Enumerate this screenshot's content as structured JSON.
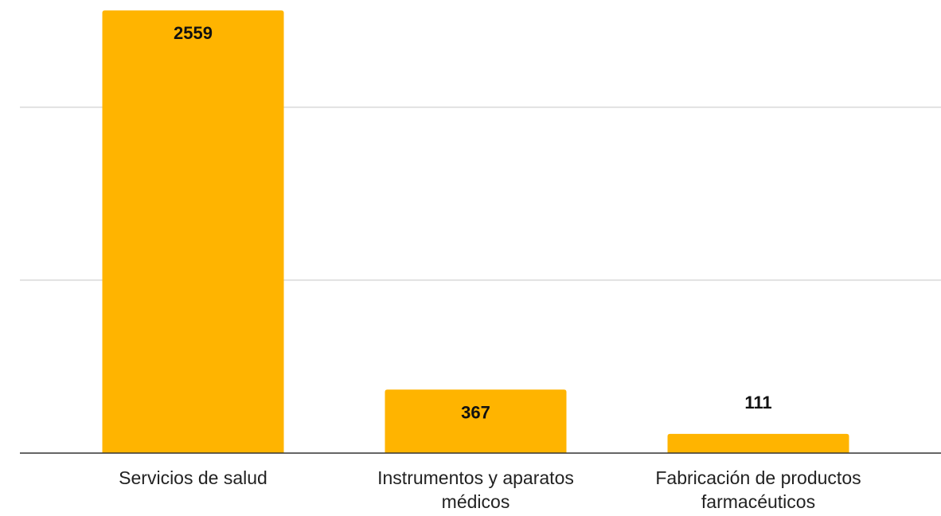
{
  "chart_data": {
    "type": "bar",
    "title": "",
    "xlabel": "",
    "ylabel": "",
    "categories": [
      [
        "Servicios de salud"
      ],
      [
        "Instrumentos y aparatos",
        "médicos"
      ],
      [
        "Fabricación de productos",
        "farmacéuticos"
      ]
    ],
    "values": [
      2559,
      367,
      111
    ],
    "ylim": [
      0,
      2600
    ],
    "gridlines": [
      1000,
      2000
    ],
    "grid": true,
    "y_tick_labels_visible": false,
    "legend": "none",
    "bar_color": "#FFB400",
    "data_labels": [
      "2559",
      "367",
      "111"
    ]
  }
}
